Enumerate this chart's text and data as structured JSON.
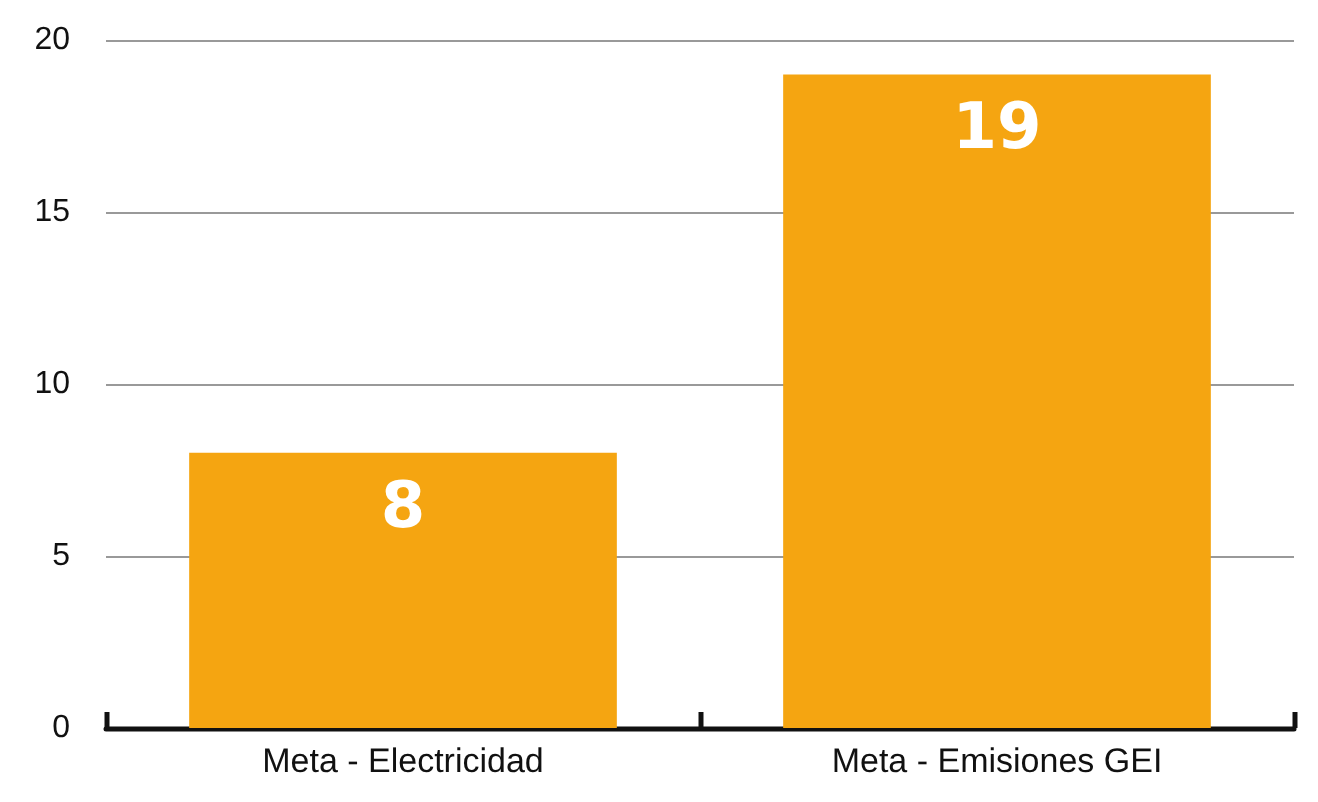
{
  "chart_data": {
    "type": "bar",
    "categories": [
      "Meta - Electricidad",
      "Meta - Emisiones GEI"
    ],
    "values": [
      8,
      19
    ],
    "color": "#f5a511",
    "ylim": [
      0,
      20
    ],
    "yticks": [
      0,
      5,
      10,
      15,
      20
    ],
    "grid": "y",
    "data_labels": true
  }
}
